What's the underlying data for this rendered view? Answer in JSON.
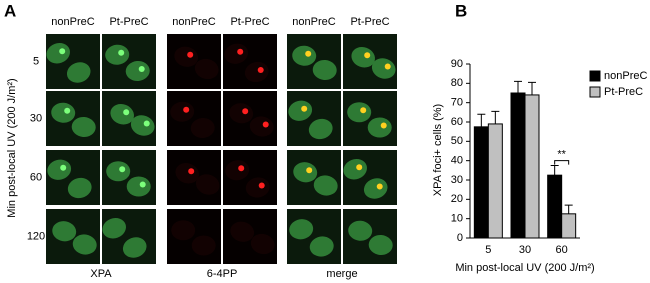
{
  "panel_a": {
    "label": "A",
    "y_label": "Min post-local UV (200 J/m²)",
    "rows": [
      "5",
      "30",
      "60",
      "120"
    ],
    "groups": [
      {
        "name": "XPA",
        "columns": [
          "nonPreC",
          "Pt-PreC"
        ]
      },
      {
        "name": "6-4PP",
        "columns": [
          "nonPreC",
          "Pt-PreC"
        ]
      },
      {
        "name": "merge",
        "columns": [
          "nonPreC",
          "Pt-PreC"
        ]
      }
    ]
  },
  "chart_data": {
    "type": "bar",
    "panel_label": "B",
    "x_label": "Min post-local UV (200 J/m²)",
    "y_label": "XPA foci+ cells (%)",
    "categories": [
      "5",
      "30",
      "60"
    ],
    "series": [
      {
        "name": "nonPreC",
        "color": "#000000",
        "values": [
          57.5,
          75,
          32.5
        ],
        "errors": [
          6.5,
          6,
          5
        ]
      },
      {
        "name": "Pt-PreC",
        "color": "#c0c0c0",
        "values": [
          59,
          74,
          12.5
        ],
        "errors": [
          6.5,
          6.5,
          4.5
        ]
      }
    ],
    "ylim": [
      0,
      90
    ],
    "yticks": [
      0,
      10,
      20,
      30,
      40,
      50,
      60,
      70,
      80,
      90
    ],
    "annotation": "**",
    "legend": "top-right"
  }
}
